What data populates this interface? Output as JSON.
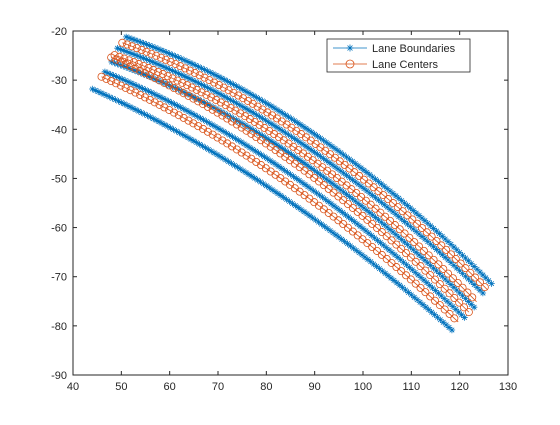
{
  "figure": {
    "background": "#ffffff"
  },
  "chart_data": {
    "type": "line",
    "title": "",
    "xlabel": "",
    "ylabel": "",
    "xlim": [
      40,
      130
    ],
    "ylim": [
      -90,
      -20
    ],
    "xticks": [
      "40",
      "50",
      "60",
      "70",
      "80",
      "90",
      "100",
      "110",
      "120",
      "130"
    ],
    "yticks": [
      "-20",
      "-30",
      "-40",
      "-50",
      "-60",
      "-70",
      "-80",
      "-90"
    ],
    "grid": false,
    "legend": {
      "placement": "top-right",
      "entries": [
        {
          "label": "Lane Boundaries",
          "color": "#0072BD",
          "marker": "asterisk"
        },
        {
          "label": "Lane Centers",
          "color": "#D95319",
          "marker": "circle"
        }
      ]
    },
    "series": [
      {
        "name": "Lane Boundaries",
        "color": "#0072BD",
        "marker": "asterisk",
        "lines": [
          {
            "x": [
              51.0,
              88.5,
              127.0
            ],
            "y": [
              -21.2,
              -40.0,
              -71.8
            ]
          },
          {
            "x": [
              49.2,
              87.5,
              125.3
            ],
            "y": [
              -23.5,
              -43.0,
              -73.8
            ]
          },
          {
            "x": [
              48.0,
              86.5,
              123.3
            ],
            "y": [
              -26.3,
              -46.0,
              -76.5
            ]
          },
          {
            "x": [
              46.6,
              84.0,
              121.2
            ],
            "y": [
              -28.3,
              -48.5,
              -78.5
            ]
          },
          {
            "x": [
              44.0,
              80.0,
              118.8
            ],
            "y": [
              -31.8,
              -51.5,
              -81.2
            ]
          }
        ]
      },
      {
        "name": "Lane Centers",
        "color": "#D95319",
        "marker": "circle",
        "lines": [
          {
            "x": [
              50.2,
              88.0,
              125.8
            ],
            "y": [
              -22.4,
              -41.5,
              -72.7
            ]
          },
          {
            "x": [
              48.6,
              87.0,
              123.5
            ],
            "y": [
              -24.9,
              -44.5,
              -75.1
            ]
          },
          {
            "x": [
              47.9,
              85.2,
              121.9
            ],
            "y": [
              -25.4,
              -46.5,
              -77.2
            ]
          },
          {
            "x": [
              45.9,
              83.0,
              119.7
            ],
            "y": [
              -29.3,
              -50.0,
              -79.2
            ]
          }
        ]
      }
    ]
  }
}
